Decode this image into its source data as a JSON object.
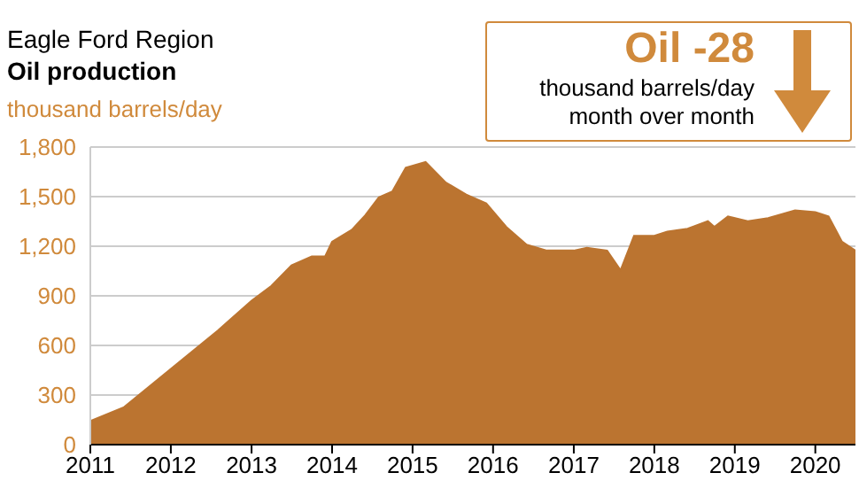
{
  "chart_data": {
    "type": "area",
    "title": "Eagle Ford Region",
    "subtitle": "Oil production",
    "ylabel": "thousand barrels/day",
    "annotations": [
      "Oil -28",
      "thousand barrels/day",
      "month over month"
    ],
    "x": [
      "2011-01",
      "2011-06",
      "2012-01",
      "2012-08",
      "2013-01",
      "2013-04",
      "2013-07",
      "2013-10",
      "2013-12",
      "2014-01",
      "2014-04",
      "2014-06",
      "2014-08",
      "2014-10",
      "2014-12",
      "2015-03",
      "2015-06",
      "2015-09",
      "2015-12",
      "2016-03",
      "2016-06",
      "2016-09",
      "2017-01",
      "2017-03",
      "2017-06",
      "2017-08",
      "2017-10",
      "2018-01",
      "2018-03",
      "2018-06",
      "2018-09",
      "2018-10",
      "2018-12",
      "2019-03",
      "2019-06",
      "2019-10",
      "2020-01",
      "2020-03",
      "2020-05",
      "2020-07"
    ],
    "series": [
      {
        "color": "#bb7430",
        "values": [
          143,
          225,
          458,
          690,
          870,
          960,
          1084,
          1138,
          1140,
          1227,
          1300,
          1388,
          1496,
          1531,
          1675,
          1710,
          1585,
          1513,
          1460,
          1317,
          1209,
          1174,
          1174,
          1191,
          1174,
          1055,
          1263,
          1263,
          1288,
          1306,
          1352,
          1317,
          1381,
          1352,
          1370,
          1417,
          1406,
          1381,
          1227,
          1174
        ]
      }
    ],
    "xlim": [
      "2011-01",
      "2020-07"
    ],
    "xticks": [
      "2011",
      "2012",
      "2013",
      "2014",
      "2015",
      "2016",
      "2017",
      "2018",
      "2019",
      "2020"
    ],
    "ylim": [
      0,
      1800
    ],
    "yticks": [
      0,
      300,
      600,
      900,
      {
        "value": 1200,
        "label": "1,200"
      },
      {
        "value": 1500,
        "label": "1,500"
      },
      {
        "value": 1800,
        "label": "1,800"
      }
    ],
    "grid": "y"
  }
}
